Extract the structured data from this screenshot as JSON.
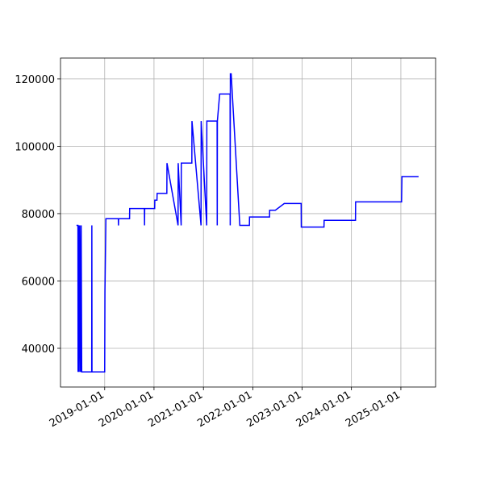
{
  "chart_data": {
    "type": "line",
    "x": [
      "2018-06-06",
      "2018-06-17",
      "2018-06-18",
      "2018-06-22",
      "2018-06-26",
      "2018-07-01",
      "2018-07-06",
      "2018-07-11",
      "2018-07-15",
      "2018-09-27",
      "2018-09-28",
      "2018-09-29",
      "2019-01-01",
      "2019-01-03",
      "2019-01-10",
      "2019-04-12",
      "2019-04-13",
      "2019-04-14",
      "2019-07-04",
      "2019-07-05",
      "2019-10-22",
      "2019-10-23",
      "2019-10-24",
      "2020-01-06",
      "2020-01-07",
      "2020-01-23",
      "2020-01-24",
      "2020-04-05",
      "2020-04-06",
      "2020-06-27",
      "2020-06-28",
      "2020-07-20",
      "2020-07-21",
      "2020-10-07",
      "2020-10-08",
      "2020-12-14",
      "2020-12-15",
      "2021-01-25",
      "2021-01-26",
      "2021-04-12",
      "2021-04-13",
      "2021-04-14",
      "2021-05-01",
      "2021-07-17",
      "2021-07-18",
      "2021-07-19",
      "2021-07-25",
      "2021-09-27",
      "2021-09-28",
      "2021-12-07",
      "2021-12-08",
      "2022-05-05",
      "2022-05-06",
      "2022-06-17",
      "2022-08-22",
      "2022-12-25",
      "2022-12-26",
      "2023-06-12",
      "2023-06-13",
      "2024-01-31",
      "2024-02-01",
      "2025-01-06",
      "2025-01-09",
      "2025-05-12"
    ],
    "series": [
      {
        "color": "#0000ff",
        "values": [
          76500,
          76500,
          33000,
          76500,
          33000,
          76500,
          33000,
          76500,
          33000,
          33000,
          76500,
          33000,
          33000,
          57000,
          78500,
          78500,
          76500,
          78500,
          78500,
          81500,
          81500,
          76500,
          81500,
          81500,
          84000,
          84000,
          86000,
          86000,
          95000,
          76500,
          95000,
          76500,
          95000,
          95000,
          107500,
          76500,
          107500,
          76500,
          107500,
          107500,
          76500,
          107500,
          115500,
          115500,
          76500,
          121500,
          121500,
          76500,
          76500,
          76500,
          79000,
          79000,
          81000,
          81000,
          83000,
          83000,
          76000,
          76000,
          78000,
          78000,
          83500,
          83500,
          91000,
          91000
        ]
      }
    ],
    "xlim": [
      "2018-02-08",
      "2025-09-15"
    ],
    "xticks": [
      "2019-01-01",
      "2020-01-01",
      "2021-01-01",
      "2022-01-01",
      "2023-01-01",
      "2024-01-01",
      "2025-01-01"
    ],
    "ylim": [
      28500,
      126200
    ],
    "yticks": [
      40000,
      60000,
      80000,
      100000,
      120000
    ],
    "grid": true
  }
}
